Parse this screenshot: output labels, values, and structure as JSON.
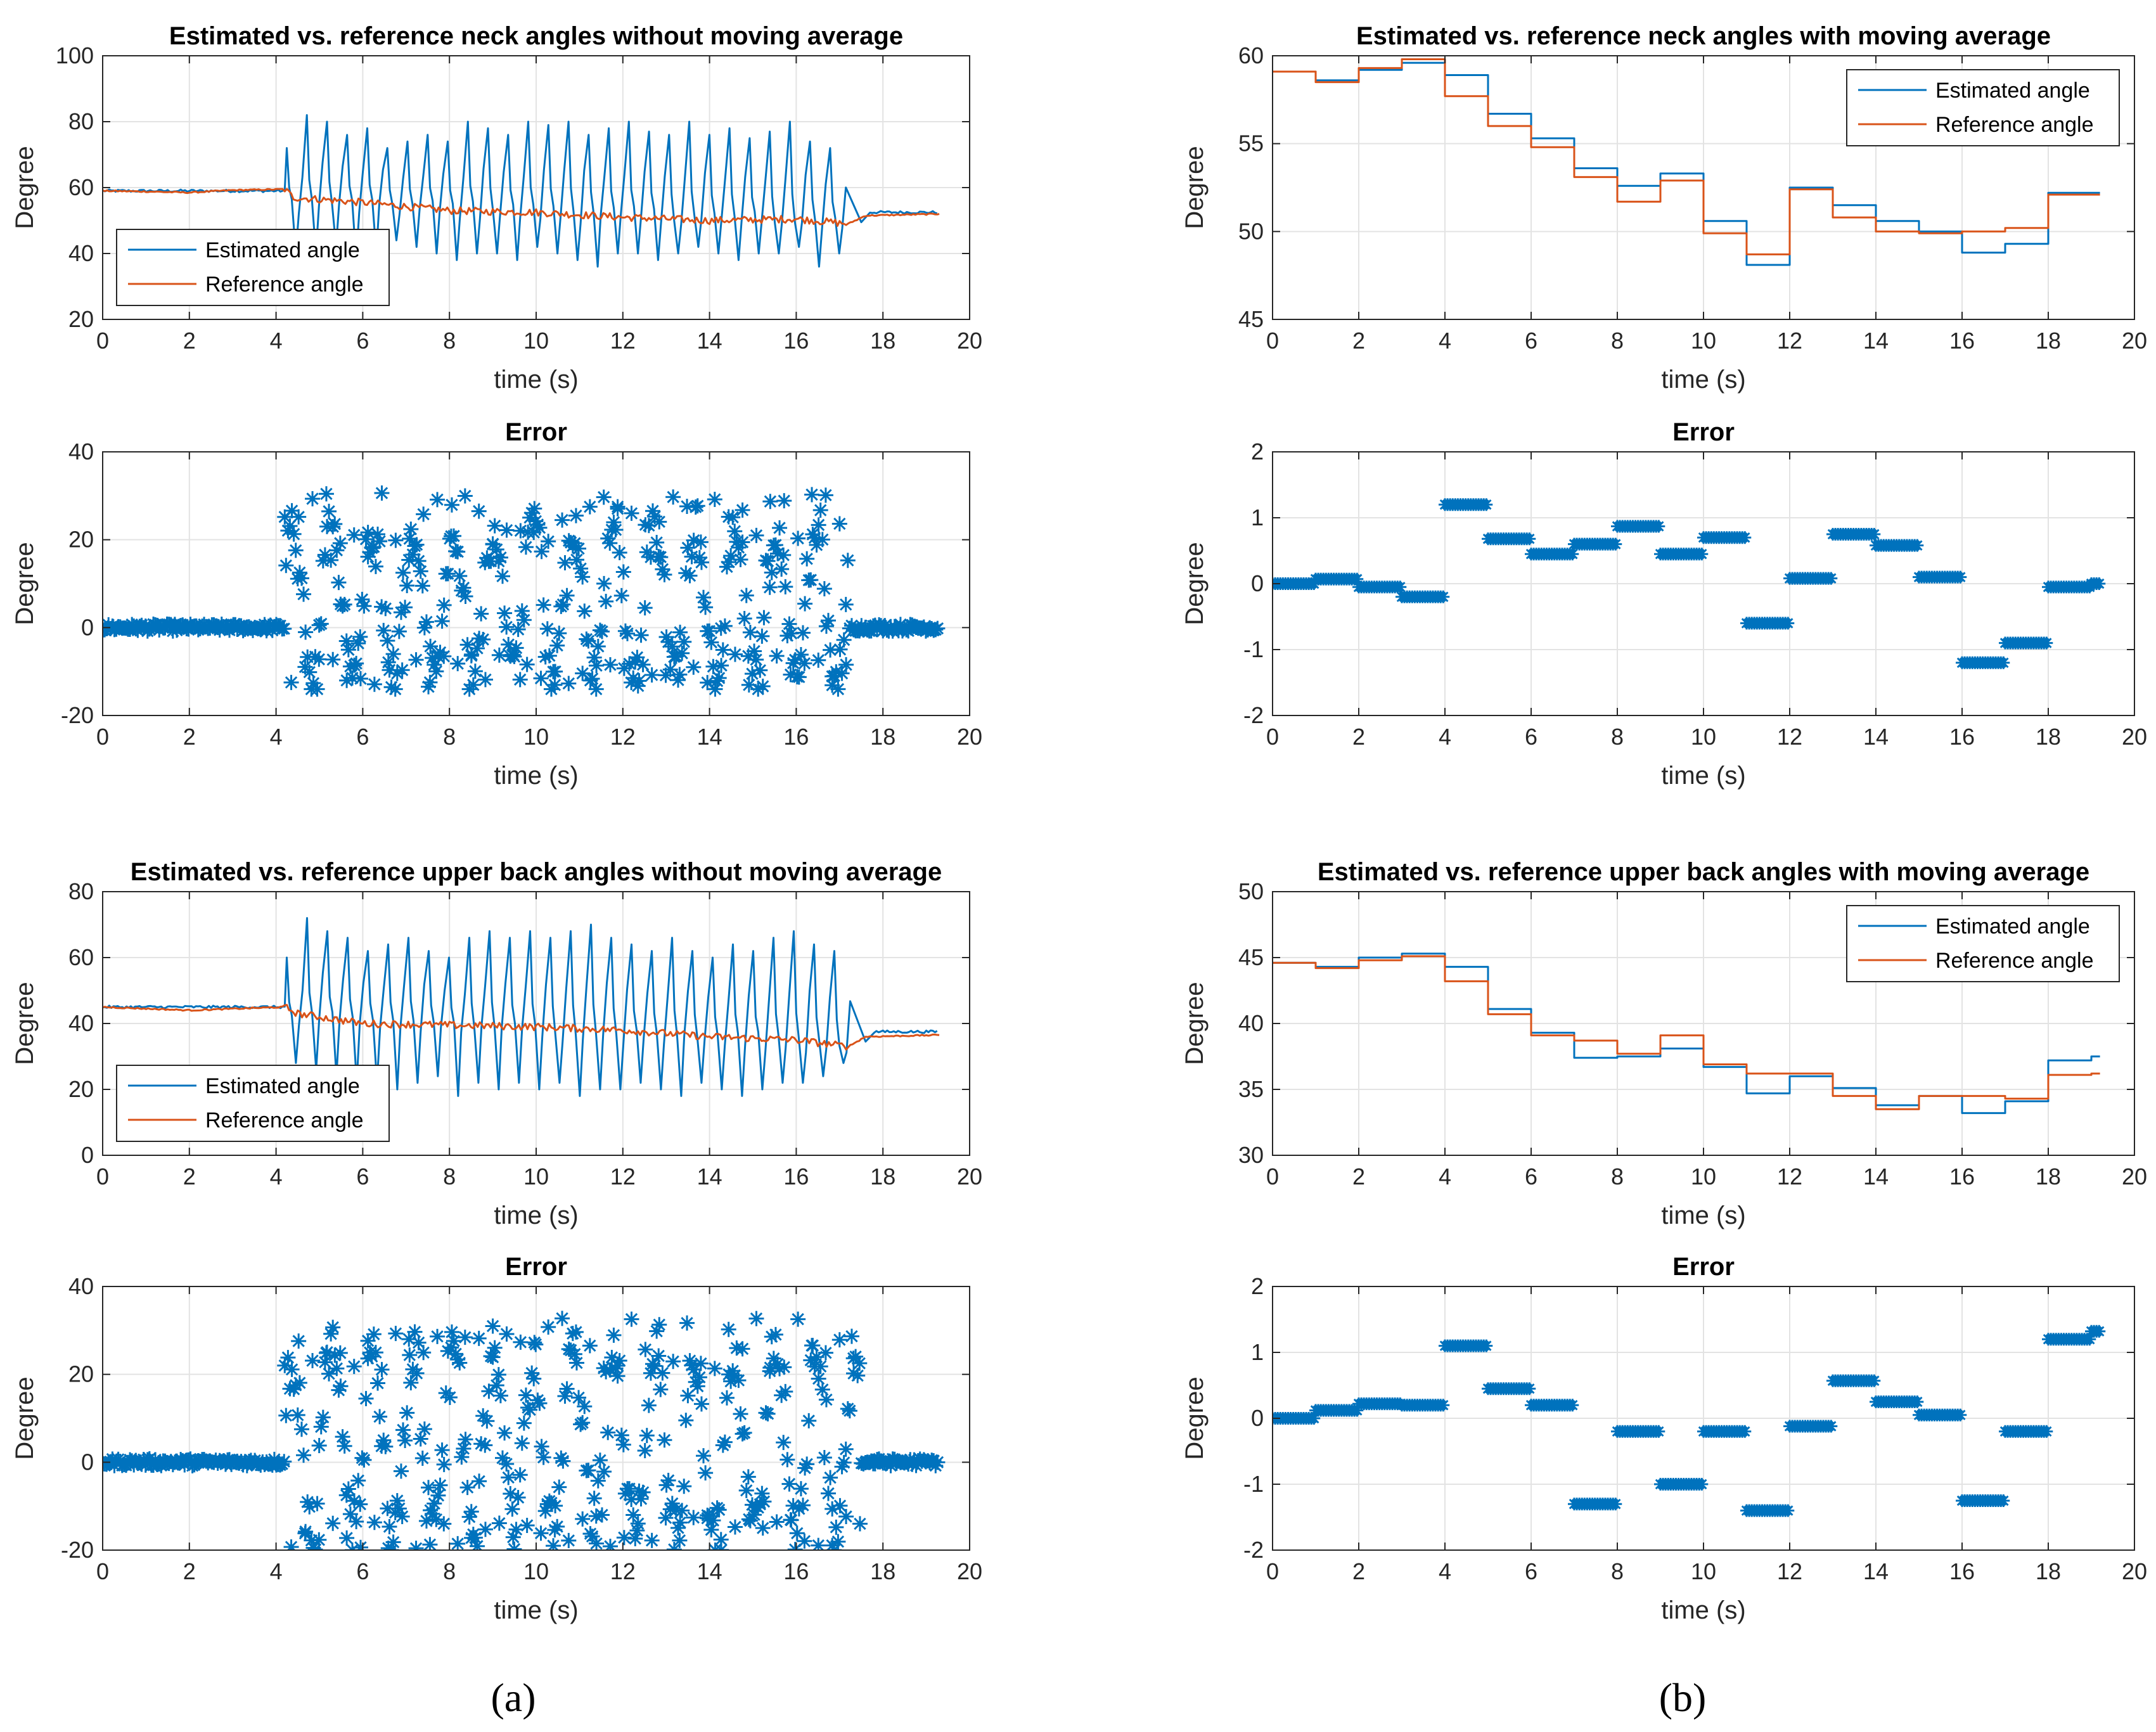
{
  "panel_labels": [
    "(a)",
    "(b)"
  ],
  "colors": {
    "estimated": "#0072BD",
    "reference": "#D95319",
    "grid": "#e3e3e3",
    "axis": "#262626"
  },
  "chart_data": [
    {
      "id": "a-neck",
      "type": "line",
      "title": "Estimated vs. reference neck angles without moving average",
      "xlabel": "time (s)",
      "ylabel": "Degree",
      "xlim": [
        0,
        20
      ],
      "ylim": [
        20,
        100
      ],
      "xticks": [
        0,
        2,
        4,
        6,
        8,
        10,
        12,
        14,
        16,
        18,
        20
      ],
      "yticks": [
        20,
        40,
        60,
        80,
        100
      ],
      "grid": true,
      "legend": "bottom-left",
      "series": [
        {
          "name": "Estimated angle",
          "kind": "oscillating",
          "start": 59,
          "end": 52.5,
          "t_on": 4.2,
          "t_off": 17.2,
          "t_end": 19.3,
          "center_start": 56,
          "center_end": 50,
          "peaks": [
            72,
            82,
            80,
            76,
            78,
            72,
            74,
            76,
            74,
            80,
            78,
            76,
            80,
            79,
            80,
            76,
            78,
            80,
            77,
            76,
            80,
            76,
            78,
            75,
            77,
            80,
            74,
            72
          ],
          "troughs": [
            40,
            40,
            42,
            38,
            40,
            44,
            42,
            40,
            38,
            40,
            40,
            38,
            42,
            40,
            38,
            36,
            40,
            40,
            38,
            40,
            42,
            40,
            38,
            40,
            40,
            42,
            36,
            40
          ]
        },
        {
          "name": "Reference angle",
          "kind": "drift",
          "points": [
            [
              0,
              59
            ],
            [
              1,
              58.8
            ],
            [
              2,
              58.5
            ],
            [
              3,
              59.2
            ],
            [
              4.2,
              59.5
            ],
            [
              4.4,
              57
            ],
            [
              6,
              55.5
            ],
            [
              8,
              53
            ],
            [
              10,
              52.5
            ],
            [
              12,
              51
            ],
            [
              14,
              50
            ],
            [
              16,
              50.5
            ],
            [
              17.2,
              49
            ],
            [
              17.6,
              51.5
            ],
            [
              19.3,
              52
            ]
          ]
        }
      ]
    },
    {
      "id": "a-neck-error",
      "type": "scatter",
      "title": "Error",
      "xlabel": "time (s)",
      "ylabel": "Degree",
      "xlim": [
        0,
        20
      ],
      "ylim": [
        -20,
        40
      ],
      "xticks": [
        0,
        2,
        4,
        6,
        8,
        10,
        12,
        14,
        16,
        18,
        20
      ],
      "yticks": [
        -20,
        0,
        20,
        40
      ],
      "grid": true,
      "marker": "asterisk",
      "active_range": [
        4.2,
        17.2
      ],
      "t_end": 19.3,
      "error_min": -14,
      "error_max": 31
    },
    {
      "id": "a-back",
      "type": "line",
      "title": "Estimated vs. reference upper back angles without moving average",
      "xlabel": "time (s)",
      "ylabel": "Degree",
      "xlim": [
        0,
        20
      ],
      "ylim": [
        0,
        80
      ],
      "xticks": [
        0,
        2,
        4,
        6,
        8,
        10,
        12,
        14,
        16,
        18,
        20
      ],
      "yticks": [
        0,
        20,
        40,
        60,
        80
      ],
      "grid": true,
      "legend": "bottom-left",
      "series": [
        {
          "name": "Estimated angle",
          "kind": "oscillating",
          "start": 45,
          "end": 37.5,
          "t_on": 4.2,
          "t_off": 17.3,
          "t_end": 19.3,
          "center_start": 42,
          "center_end": 34,
          "peaks": [
            60,
            72,
            68,
            66,
            62,
            64,
            66,
            62,
            60,
            66,
            68,
            66,
            68,
            66,
            68,
            70,
            66,
            64,
            62,
            66,
            62,
            60,
            64,
            62,
            66,
            68,
            64,
            62
          ],
          "troughs": [
            28,
            26,
            24,
            22,
            22,
            20,
            22,
            24,
            18,
            22,
            20,
            22,
            20,
            22,
            18,
            20,
            20,
            22,
            20,
            18,
            22,
            20,
            18,
            20,
            22,
            22,
            24,
            28
          ]
        },
        {
          "name": "Reference angle",
          "kind": "drift",
          "points": [
            [
              0,
              45
            ],
            [
              2,
              44
            ],
            [
              4.2,
              45
            ],
            [
              4.5,
              43
            ],
            [
              6,
              40
            ],
            [
              8,
              39.5
            ],
            [
              10,
              39
            ],
            [
              12,
              38
            ],
            [
              14,
              36
            ],
            [
              16,
              35
            ],
            [
              17.2,
              33
            ],
            [
              17.6,
              36
            ],
            [
              19.3,
              36.5
            ]
          ]
        }
      ]
    },
    {
      "id": "a-back-error",
      "type": "scatter",
      "title": "Error",
      "xlabel": "time (s)",
      "ylabel": "Degree",
      "xlim": [
        0,
        20
      ],
      "ylim": [
        -20,
        40
      ],
      "xticks": [
        0,
        2,
        4,
        6,
        8,
        10,
        12,
        14,
        16,
        18,
        20
      ],
      "yticks": [
        -20,
        0,
        20,
        40
      ],
      "grid": true,
      "marker": "asterisk",
      "active_range": [
        4.2,
        17.5
      ],
      "t_end": 19.3,
      "error_min": -20,
      "error_max": 33
    },
    {
      "id": "b-neck",
      "type": "line",
      "title": "Estimated vs. reference neck angles with moving average",
      "xlabel": "time (s)",
      "ylabel": "Degree",
      "xlim": [
        0,
        20
      ],
      "ylim": [
        45,
        60
      ],
      "xticks": [
        0,
        2,
        4,
        6,
        8,
        10,
        12,
        14,
        16,
        18,
        20
      ],
      "yticks": [
        45,
        50,
        55,
        60
      ],
      "grid": true,
      "legend": "top-right",
      "style": "step",
      "step_t_end": 19.2,
      "series": [
        {
          "name": "Estimated angle",
          "values": [
            59.1,
            58.6,
            59.2,
            59.6,
            58.9,
            56.7,
            55.3,
            53.6,
            52.6,
            53.3,
            50.6,
            48.1,
            52.5,
            51.5,
            50.6,
            50.0,
            48.8,
            49.3,
            52.2,
            52.2
          ]
        },
        {
          "name": "Reference angle",
          "values": [
            59.1,
            58.5,
            59.3,
            59.8,
            57.7,
            56.0,
            54.8,
            53.1,
            51.7,
            52.9,
            49.9,
            48.7,
            52.4,
            50.8,
            50.0,
            49.9,
            50.0,
            50.2,
            52.1,
            52.1
          ]
        }
      ]
    },
    {
      "id": "b-neck-error",
      "type": "scatter",
      "title": "Error",
      "xlabel": "time (s)",
      "ylabel": "Degree",
      "xlim": [
        0,
        20
      ],
      "ylim": [
        -2,
        2
      ],
      "xticks": [
        0,
        2,
        4,
        6,
        8,
        10,
        12,
        14,
        16,
        18,
        20
      ],
      "yticks": [
        -2,
        -1,
        0,
        1,
        2
      ],
      "grid": true,
      "marker": "asterisk",
      "style": "segments",
      "step_t_end": 19.2,
      "values": [
        0.0,
        0.07,
        -0.05,
        -0.2,
        1.2,
        0.68,
        0.45,
        0.6,
        0.87,
        0.45,
        0.7,
        -0.6,
        0.08,
        0.75,
        0.58,
        0.1,
        -1.2,
        -0.9,
        -0.05,
        0.0
      ]
    },
    {
      "id": "b-back",
      "type": "line",
      "title": "Estimated vs. reference upper back angles with moving average",
      "xlabel": "time (s)",
      "ylabel": "Degree",
      "xlim": [
        0,
        20
      ],
      "ylim": [
        30,
        50
      ],
      "xticks": [
        0,
        2,
        4,
        6,
        8,
        10,
        12,
        14,
        16,
        18,
        20
      ],
      "yticks": [
        30,
        35,
        40,
        45,
        50
      ],
      "grid": true,
      "legend": "top-right",
      "style": "step",
      "step_t_end": 19.2,
      "series": [
        {
          "name": "Estimated angle",
          "values": [
            44.6,
            44.3,
            45.0,
            45.3,
            44.3,
            41.1,
            39.3,
            37.4,
            37.5,
            38.1,
            36.7,
            34.7,
            36.0,
            35.1,
            33.8,
            34.5,
            33.2,
            34.1,
            37.2,
            37.5
          ]
        },
        {
          "name": "Reference angle",
          "values": [
            44.6,
            44.2,
            44.8,
            45.1,
            43.2,
            40.7,
            39.1,
            38.7,
            37.7,
            39.1,
            36.9,
            36.2,
            36.2,
            34.5,
            33.5,
            34.5,
            34.5,
            34.3,
            36.1,
            36.2
          ]
        }
      ]
    },
    {
      "id": "b-back-error",
      "type": "scatter",
      "title": "Error",
      "xlabel": "time (s)",
      "ylabel": "Degree",
      "xlim": [
        0,
        20
      ],
      "ylim": [
        -2,
        2
      ],
      "xticks": [
        0,
        2,
        4,
        6,
        8,
        10,
        12,
        14,
        16,
        18,
        20
      ],
      "yticks": [
        -2,
        -1,
        0,
        1,
        2
      ],
      "grid": true,
      "marker": "asterisk",
      "style": "segments",
      "step_t_end": 19.2,
      "values": [
        0.0,
        0.12,
        0.22,
        0.2,
        1.1,
        0.45,
        0.2,
        -1.3,
        -0.2,
        -1.0,
        -0.2,
        -1.4,
        -0.12,
        0.57,
        0.25,
        0.05,
        -1.25,
        -0.2,
        1.2,
        1.32
      ]
    }
  ]
}
